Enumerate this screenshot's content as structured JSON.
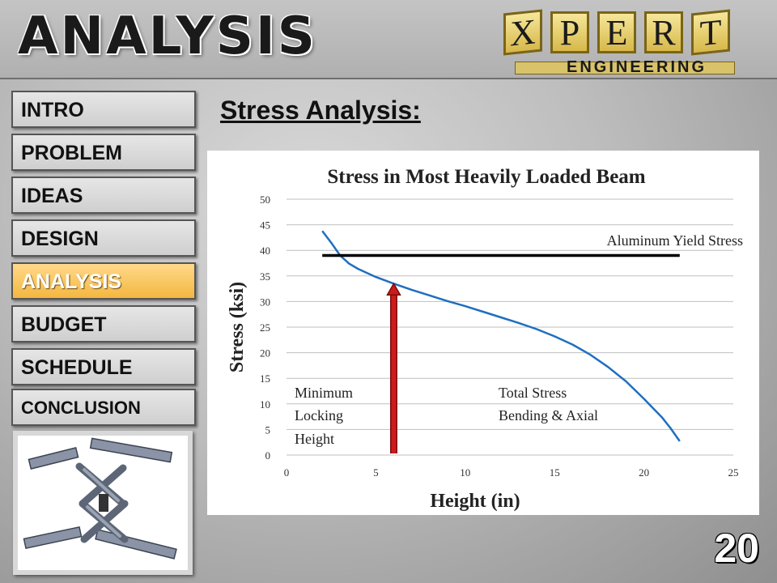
{
  "slide": {
    "title": "ANALYSIS",
    "page_number": "20",
    "section_heading": "Stress Analysis:"
  },
  "logo": {
    "letters": [
      "X",
      "P",
      "E",
      "R",
      "T"
    ],
    "subtitle": "ENGINEERING"
  },
  "nav": {
    "items": [
      {
        "label": "INTRO"
      },
      {
        "label": "PROBLEM"
      },
      {
        "label": "IDEAS"
      },
      {
        "label": "DESIGN"
      },
      {
        "label": "ANALYSIS",
        "active": true
      },
      {
        "label": "BUDGET"
      },
      {
        "label": "SCHEDULE"
      },
      {
        "label": "CONCLUSION"
      }
    ],
    "active_color": "#f4b740"
  },
  "chart_data": {
    "type": "line",
    "title": "Stress in Most Heavily Loaded Beam",
    "xlabel": "Height (in)",
    "ylabel": "Stress (ksi)",
    "xlim": [
      0,
      25
    ],
    "ylim": [
      0,
      50
    ],
    "xticks": [
      0,
      5,
      10,
      15,
      20,
      25
    ],
    "yticks": [
      0,
      5,
      10,
      15,
      20,
      25,
      30,
      35,
      40,
      45,
      50
    ],
    "grid": "horizontal",
    "series": [
      {
        "name": "Total Stress Bending & Axial",
        "color": "#1f6fbf",
        "x": [
          2.0,
          2.5,
          3.0,
          3.5,
          4.0,
          5.0,
          6.0,
          7.0,
          8.0,
          9.0,
          10.0,
          11.0,
          12.0,
          13.0,
          14.0,
          15.0,
          16.0,
          17.0,
          18.0,
          19.0,
          20.0,
          20.5,
          21.0,
          21.5,
          22.0
        ],
        "y": [
          43.8,
          41.5,
          39.0,
          37.4,
          36.4,
          34.8,
          33.5,
          32.3,
          31.2,
          30.1,
          29.1,
          28.0,
          26.9,
          25.8,
          24.6,
          23.2,
          21.6,
          19.6,
          17.2,
          14.4,
          11.0,
          9.2,
          7.4,
          5.2,
          2.7
        ]
      },
      {
        "name": "Aluminum Yield Stress",
        "color": "#000000",
        "x": [
          2.0,
          22.0
        ],
        "y": [
          39.0,
          39.0
        ]
      }
    ],
    "locking_height": {
      "x": 6.0,
      "y": 33.5,
      "color": "#cc1b1b"
    },
    "annotations": {
      "yield": "Aluminum Yield Stress",
      "minimum": [
        "Minimum",
        "Locking",
        "Height"
      ],
      "total": [
        "Total Stress",
        "Bending & Axial"
      ]
    }
  }
}
